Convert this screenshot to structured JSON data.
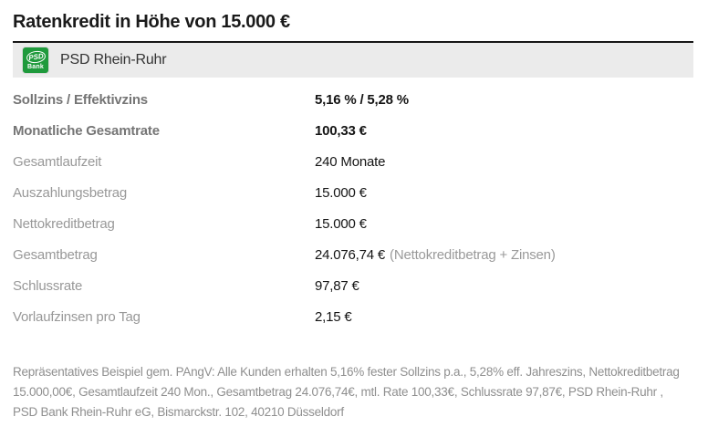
{
  "title": "Ratenkredit in Höhe von 15.000 €",
  "bank": {
    "name": "PSD Rhein-Ruhr",
    "logo_line1": "PSD",
    "logo_line2": "Bank"
  },
  "table": {
    "rows": [
      {
        "label": "Sollzins / Effektivzins",
        "value": "5,16 % / 5,28 %"
      },
      {
        "label": "Monatliche Gesamtrate",
        "value": "100,33 €"
      },
      {
        "label": "Gesamtlaufzeit",
        "value": "240 Monate"
      },
      {
        "label": "Auszahlungsbetrag",
        "value": "15.000 €"
      },
      {
        "label": "Nettokreditbetrag",
        "value": "15.000 €"
      },
      {
        "label": "Gesamtbetrag",
        "value": "24.076,74 €",
        "note": "(Nettokreditbetrag + Zinsen)"
      },
      {
        "label": "Schlussrate",
        "value": "97,87 €"
      },
      {
        "label": "Vorlaufzinsen pro Tag",
        "value": "2,15 €"
      }
    ]
  },
  "footer": "Repräsentatives Beispiel gem. PAngV: Alle Kunden erhalten 5,16% fester Sollzins p.a., 5,28% eff. Jahreszins, Nettokreditbetrag 15.000,00€, Gesamtlaufzeit 240 Mon., Gesamtbetrag 24.076,74€, mtl. Rate 100,33€, Schlussrate 97,87€, PSD Rhein-Ruhr , PSD Bank Rhein-Ruhr eG, Bismarckstr. 102, 40210 Düsseldorf",
  "colors": {
    "logo_green": "#1f9a3c",
    "bar_background": "#ebebeb",
    "label_gray": "#989898",
    "value_black": "#141414",
    "footer_gray": "#8f8f8f"
  }
}
